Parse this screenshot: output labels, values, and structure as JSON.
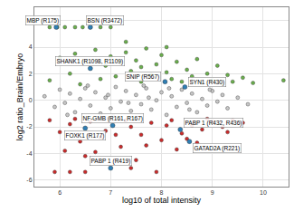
{
  "chart_data": {
    "type": "scatter",
    "x_label": "log10 of total intensity",
    "y_label": "log2 ratio_Brain/Embryo",
    "xlim": [
      5.5,
      10.5
    ],
    "xticks": [
      6,
      7,
      8,
      9,
      10
    ],
    "ylim": [
      -6.5,
      7
    ],
    "yticks": [
      -6,
      -4,
      -2,
      0,
      2,
      4,
      6
    ],
    "grid": true,
    "marker": "circle",
    "series": [
      {
        "color": "#6ab04c",
        "x": [
          5.8,
          5.95,
          6.1,
          6.3,
          6.45,
          6.6,
          6.8,
          7.0,
          6.0,
          6.3,
          6.5,
          6.7,
          6.9,
          7.0,
          7.2,
          7.3,
          7.4,
          7.5,
          7.6,
          7.7,
          7.8,
          7.9,
          8.0,
          8.1,
          8.2,
          8.3,
          8.4,
          8.5,
          8.6,
          8.7,
          8.8,
          8.9,
          9.0,
          9.1,
          9.2,
          9.3,
          9.4,
          9.6,
          9.8,
          10.4,
          6.2,
          6.8,
          7.1,
          7.6,
          6.4,
          5.8,
          7.3,
          8.1
        ],
        "y": [
          5.5,
          5.5,
          5.5,
          5.5,
          5.5,
          5.5,
          5.5,
          5.5,
          3.2,
          3.5,
          2.9,
          3.8,
          2.6,
          3.3,
          2.8,
          3.6,
          2.2,
          3.0,
          2.5,
          3.9,
          1.9,
          2.7,
          3.4,
          2.1,
          1.6,
          2.9,
          1.4,
          2.3,
          1.8,
          3.1,
          1.3,
          2.0,
          1.5,
          2.6,
          1.2,
          1.9,
          1.4,
          1.7,
          1.3,
          1.5,
          2.0,
          1.6,
          1.8,
          1.4,
          1.2,
          1.5,
          4.4,
          4.0
        ]
      },
      {
        "color": "#c8c8c8",
        "x": [
          5.7,
          5.9,
          6.0,
          6.1,
          6.2,
          6.3,
          6.4,
          6.5,
          6.6,
          6.7,
          6.8,
          6.9,
          7.0,
          7.1,
          7.2,
          7.3,
          7.4,
          7.5,
          7.6,
          7.7,
          7.8,
          7.9,
          8.0,
          8.1,
          8.2,
          8.3,
          8.4,
          8.5,
          8.6,
          8.7,
          8.8,
          8.9,
          9.0,
          9.1,
          9.2,
          9.3,
          9.5,
          9.7,
          6.15,
          6.55,
          6.95,
          7.35,
          7.75,
          8.15,
          8.55,
          8.95,
          7.05,
          7.65
        ],
        "y": [
          0.3,
          -0.5,
          0.8,
          -0.2,
          0.5,
          -0.9,
          0.1,
          0.9,
          -0.4,
          0.6,
          -1.0,
          0.2,
          -0.6,
          1.0,
          -0.1,
          0.7,
          -0.8,
          0.4,
          -0.3,
          0.9,
          -0.7,
          0.0,
          0.6,
          -1.1,
          0.3,
          -0.5,
          0.8,
          -0.2,
          0.5,
          -0.9,
          0.1,
          -0.4,
          0.7,
          -0.1,
          0.4,
          -0.6,
          0.2,
          -0.3,
          -1.1,
          1.1,
          0.4,
          -0.2,
          0.2,
          0.9,
          -0.7,
          0.8,
          -1.2,
          1.1
        ]
      },
      {
        "color": "#cc2b2b",
        "x": [
          5.8,
          6.0,
          6.2,
          6.4,
          6.6,
          6.8,
          7.0,
          7.2,
          7.4,
          7.6,
          7.8,
          8.0,
          8.2,
          8.4,
          8.6,
          8.8,
          9.0,
          9.2,
          9.4,
          9.6,
          6.1,
          6.5,
          6.9,
          7.3,
          7.7,
          8.1,
          8.5,
          8.9,
          9.3,
          7.5,
          8.3,
          6.3,
          6.7,
          7.1,
          8.7,
          5.9,
          6.2,
          6.5,
          7.4,
          7.9
        ],
        "y": [
          -1.5,
          -2.4,
          -1.8,
          -3.1,
          -1.6,
          -2.8,
          -1.4,
          -3.5,
          -2.0,
          -2.6,
          -1.7,
          -3.0,
          -1.5,
          -2.5,
          -1.9,
          -2.2,
          -1.6,
          -2.0,
          -1.5,
          -1.7,
          -3.8,
          -4.2,
          -2.3,
          -1.5,
          -3.4,
          -1.9,
          -2.9,
          -1.4,
          -2.4,
          -4.5,
          -3.7,
          -1.4,
          -3.9,
          -2.6,
          -3.2,
          -5.4,
          -5.4,
          -5.4,
          -5.1,
          -5.4
        ]
      },
      {
        "color": "#2f7fb5",
        "x": [
          5.93,
          6.6,
          6.6,
          8.07,
          8.46,
          6.5,
          7.04,
          8.37,
          8.55,
          7.0
        ],
        "y": [
          5.5,
          5.5,
          2.4,
          1.4,
          1.0,
          -2.1,
          -1.9,
          -2.2,
          -3.1,
          -5.1
        ],
        "labels": [
          "MBP (R175)",
          "BSN (R3472)",
          "SHANK1 (R1098, R1109)",
          "SNIP (R567)",
          "SYN1 (R430)",
          "FOXK1 (R177)",
          "NF-GMB (R161, R167)",
          "PABP 1 (R432, R436)",
          "GATAD2A (R221)",
          "PABP 1 (R419)"
        ]
      }
    ]
  }
}
